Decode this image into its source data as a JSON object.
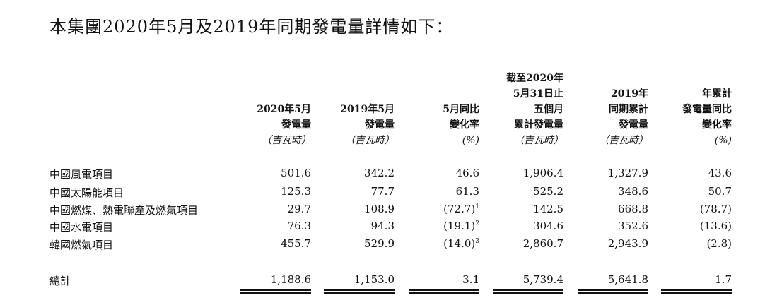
{
  "title": "本集團2020年5月及2019年同期發電量詳情如下：",
  "headers": [
    {
      "lines": [
        "2020年5月",
        "發電量"
      ],
      "unit": "（吉瓦時）"
    },
    {
      "lines": [
        "2019年5月",
        "發電量"
      ],
      "unit": "（吉瓦時）"
    },
    {
      "lines": [
        "5月同比",
        "變化率"
      ],
      "unit": "(%)"
    },
    {
      "lines": [
        "截至2020年",
        "5月31日止",
        "五個月",
        "累計發電量"
      ],
      "unit": "（吉瓦時）"
    },
    {
      "lines": [
        "2019年",
        "同期累計",
        "發電量"
      ],
      "unit": "（吉瓦時）"
    },
    {
      "lines": [
        "年累計",
        "發電量同比",
        "變化率"
      ],
      "unit": "(%)"
    }
  ],
  "rows": [
    {
      "label": "中國風電項目",
      "values": [
        "501.6",
        "342.2",
        "46.6",
        "1,906.4",
        "1,327.9",
        "43.6"
      ]
    },
    {
      "label": "中國太陽能項目",
      "values": [
        "125.3",
        "77.7",
        "61.3",
        "525.2",
        "348.6",
        "50.7"
      ]
    },
    {
      "label": "中國燃煤、熱電聯產及燃氣項目",
      "values": [
        "29.7",
        "108.9",
        "(72.7)",
        "142.5",
        "668.8",
        "(78.7)"
      ],
      "notes": [
        "",
        "",
        "1",
        "",
        "",
        ""
      ]
    },
    {
      "label": "中國水電項目",
      "values": [
        "76.3",
        "94.3",
        "(19.1)",
        "304.6",
        "352.6",
        "(13.6)"
      ],
      "notes": [
        "",
        "",
        "2",
        "",
        "",
        ""
      ]
    },
    {
      "label": "韓國燃氣項目",
      "values": [
        "455.7",
        "529.9",
        "(14.0)",
        "2,860.7",
        "2,943.9",
        "(2.8)"
      ],
      "notes": [
        "",
        "",
        "3",
        "",
        "",
        ""
      ]
    }
  ],
  "total": {
    "label": "總計",
    "values": [
      "1,188.6",
      "1,153.0",
      "3.1",
      "5,739.4",
      "5,641.8",
      "1.7"
    ]
  }
}
